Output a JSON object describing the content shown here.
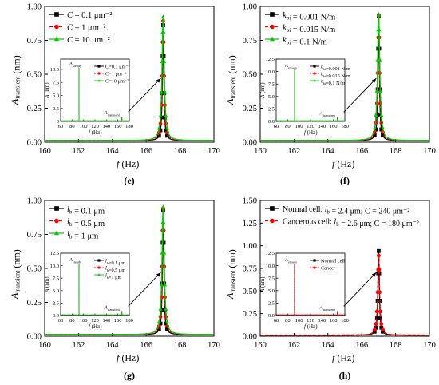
{
  "chart_data": [
    {
      "type": "line",
      "panel_label": "(e)",
      "xlabel": "f (Hz)",
      "ylabel": "A_transient (nm)",
      "xlim": [
        160,
        170
      ],
      "ylim": [
        0,
        1.0
      ],
      "x_ticks": [
        "160",
        "162",
        "164",
        "166",
        "168",
        "170"
      ],
      "y_ticks": [
        "0.00",
        "0.25",
        "0.50",
        "0.75",
        "1.00"
      ],
      "legend_position": "top-left",
      "series": [
        {
          "name": "C = 0.1 μm⁻²",
          "color": "#000000",
          "marker": "square",
          "dash": "solid",
          "peak": 0.85
        },
        {
          "name": "C = 1 μm⁻²",
          "color": "#ff0000",
          "marker": "circle",
          "dash": "dash",
          "peak": 0.88
        },
        {
          "name": "C = 10 μm⁻²",
          "color": "#00cc00",
          "marker": "triangle",
          "dash": "solid",
          "peak": 0.91
        }
      ],
      "peak_x": 167.0,
      "inset": {
        "xlabel": "f (Hz)",
        "ylabel": "A (nm)",
        "xlim": [
          60,
          180
        ],
        "ylim": [
          0,
          12
        ],
        "x_ticks": [
          "60",
          "80",
          "100",
          "120",
          "140",
          "160",
          "180"
        ],
        "y_ticks": [
          "0",
          "2.5",
          "5.0",
          "7.5",
          "10.0"
        ],
        "steady_x": 92,
        "steady_value": 10.4,
        "transient_x": 167,
        "transient_value": 0.9,
        "annot_steady": "A_steady",
        "annot_transient": "A_transient",
        "legend": [
          "C=0.1 μm⁻²",
          "C=1 μm⁻²",
          "C=10 μm⁻²"
        ]
      }
    },
    {
      "type": "line",
      "panel_label": "(f)",
      "xlabel": "f (Hz)",
      "ylabel": "A_transient (nm)",
      "xlim": [
        160,
        170
      ],
      "ylim": [
        0,
        1.0
      ],
      "x_ticks": [
        "160",
        "162",
        "164",
        "166",
        "168",
        "170"
      ],
      "y_ticks": [
        "0.00",
        "0.25",
        "0.50",
        "0.75",
        "1.00"
      ],
      "legend_position": "top-left",
      "series": [
        {
          "name": "k_bi = 0.001 N/m",
          "color": "#000000",
          "marker": "square",
          "dash": "solid",
          "peak": 0.92
        },
        {
          "name": "k_bi = 0.015 N/m",
          "color": "#ff0000",
          "marker": "circle",
          "dash": "dash",
          "peak": 0.92
        },
        {
          "name": "k_bi = 0.1 N/m",
          "color": "#00cc00",
          "marker": "triangle",
          "dash": "solid",
          "peak": 0.93
        }
      ],
      "peak_x": 167.0,
      "inset": {
        "xlabel": "f (Hz)",
        "ylabel": "A (nm)",
        "xlim": [
          60,
          180
        ],
        "ylim": [
          0,
          12.5
        ],
        "x_ticks": [
          "60",
          "80",
          "100",
          "120",
          "140",
          "160",
          "180"
        ],
        "y_ticks": [
          "0.0",
          "2.5",
          "5.0",
          "7.5",
          "10.0",
          "12.5"
        ],
        "steady_x": 92,
        "steady_value": 10.4,
        "transient_x": 167,
        "transient_value": 0.9,
        "annot_steady": "A_steady",
        "annot_transient": "A_transient",
        "legend": [
          "k_bi=0.001 N/m",
          "k_bi=0.015 N/m",
          "k_bi=0.1 N/m"
        ]
      }
    },
    {
      "type": "line",
      "panel_label": "(g)",
      "xlabel": "f (Hz)",
      "ylabel": "A_transient (nm)",
      "xlim": [
        160,
        170
      ],
      "ylim": [
        0,
        1.0
      ],
      "x_ticks": [
        "160",
        "162",
        "164",
        "166",
        "168",
        "170"
      ],
      "y_ticks": [
        "0.00",
        "0.25",
        "0.50",
        "0.75",
        "1.00"
      ],
      "legend_position": "top-left",
      "series": [
        {
          "name": "l_b = 0.1 μm",
          "color": "#000000",
          "marker": "square",
          "dash": "solid",
          "peak": 0.92
        },
        {
          "name": "l_b = 0.5 μm",
          "color": "#ff0000",
          "marker": "circle",
          "dash": "dash",
          "peak": 0.93
        },
        {
          "name": "l_b = 1 μm",
          "color": "#00cc00",
          "marker": "triangle",
          "dash": "solid",
          "peak": 0.94
        }
      ],
      "peak_x": 167.0,
      "inset": {
        "xlabel": "f (Hz)",
        "ylabel": "A (nm)",
        "xlim": [
          60,
          180
        ],
        "ylim": [
          0,
          12.5
        ],
        "x_ticks": [
          "60",
          "80",
          "100",
          "120",
          "140",
          "160",
          "180"
        ],
        "y_ticks": [
          "0.0",
          "2.5",
          "5.0",
          "7.5",
          "10.0",
          "12.5"
        ],
        "steady_x": 92,
        "steady_value": 10.4,
        "transient_x": 167,
        "transient_value": 0.9,
        "annot_steady": "A_steady",
        "annot_transient": "A_transient",
        "legend": [
          "l_b=0.1 μm",
          "l_b=0.5 μm",
          "l_b=1 μm"
        ]
      }
    },
    {
      "type": "line",
      "panel_label": "(h)",
      "xlabel": "f (Hz)",
      "ylabel": "A_transient (nm)",
      "xlim": [
        160,
        170
      ],
      "ylim": [
        0,
        1.5
      ],
      "x_ticks": [
        "160",
        "162",
        "164",
        "166",
        "168",
        "170"
      ],
      "y_ticks": [
        "0.00",
        "0.25",
        "0.50",
        "0.75",
        "1.00",
        "1.25",
        "1.50"
      ],
      "legend_position": "top-left",
      "series": [
        {
          "name": "Normal cell: l_b = 2.4 μm; C = 240 μm⁻²",
          "color": "#000000",
          "marker": "square",
          "dash": "solid",
          "peak": 0.93
        },
        {
          "name": "Cancerous cell: l_b = 2.6 μm; C = 180 μm⁻²",
          "color": "#ff0000",
          "marker": "circle",
          "dash": "dash",
          "peak": 0.88
        }
      ],
      "peak_x": 167.0,
      "inset": {
        "xlabel": "f (Hz)",
        "ylabel": "A (nm)",
        "xlim": [
          60,
          180
        ],
        "ylim": [
          0,
          12.5
        ],
        "x_ticks": [
          "60",
          "80",
          "100",
          "120",
          "140",
          "160",
          "180"
        ],
        "y_ticks": [
          "0.0",
          "2.5",
          "5.0",
          "7.5",
          "10.0",
          "12.5"
        ],
        "steady_x": 92,
        "steady_value": 10.4,
        "transient_x": 167,
        "transient_value": 0.9,
        "annot_steady": "A_steady",
        "annot_transient": "A_transient",
        "legend": [
          "Normal cell",
          "Cancer"
        ]
      }
    }
  ]
}
